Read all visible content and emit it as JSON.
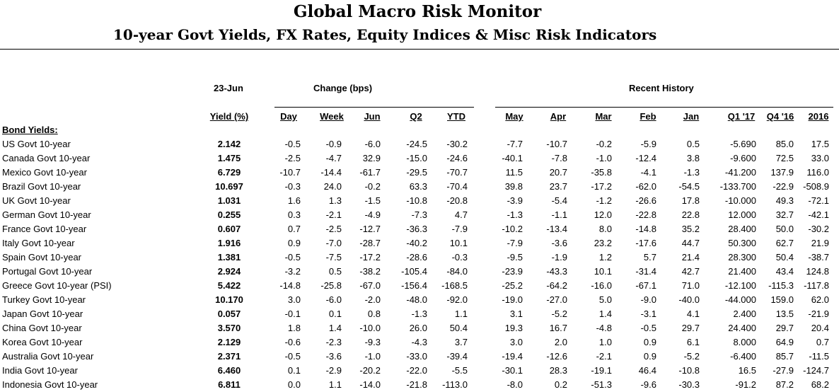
{
  "header": {
    "title": "Global Macro Risk Monitor",
    "subtitle": "10-year Govt Yields, FX Rates, Equity Indices & Misc Risk Indicators"
  },
  "groups": {
    "date": "23-Jun",
    "change": "Change (bps)",
    "history": "Recent History"
  },
  "columns": [
    "Yield (%)",
    "Day",
    "Week",
    "Jun",
    "Q2",
    "YTD",
    "May",
    "Apr",
    "Mar",
    "Feb",
    "Jan",
    "Q1 '17",
    "Q4 '16",
    "2016"
  ],
  "section_label": "Bond Yields:",
  "rows": [
    {
      "name": "US Govt 10-year",
      "values": [
        "2.142",
        "-0.5",
        "-0.9",
        "-6.0",
        "-24.5",
        "-30.2",
        "-7.7",
        "-10.7",
        "-0.2",
        "-5.9",
        "0.5",
        "-5.690",
        "85.0",
        "17.5"
      ]
    },
    {
      "name": "Canada Govt 10-year",
      "values": [
        "1.475",
        "-2.5",
        "-4.7",
        "32.9",
        "-15.0",
        "-24.6",
        "-40.1",
        "-7.8",
        "-1.0",
        "-12.4",
        "3.8",
        "-9.600",
        "72.5",
        "33.0"
      ]
    },
    {
      "name": "Mexico Govt 10-year",
      "values": [
        "6.729",
        "-10.7",
        "-14.4",
        "-61.7",
        "-29.5",
        "-70.7",
        "11.5",
        "20.7",
        "-35.8",
        "-4.1",
        "-1.3",
        "-41.200",
        "137.9",
        "116.0"
      ]
    },
    {
      "name": "Brazil Govt 10-year",
      "values": [
        "10.697",
        "-0.3",
        "24.0",
        "-0.2",
        "63.3",
        "-70.4",
        "39.8",
        "23.7",
        "-17.2",
        "-62.0",
        "-54.5",
        "-133.700",
        "-22.9",
        "-508.9"
      ]
    },
    {
      "name": "UK Govt 10-year",
      "values": [
        "1.031",
        "1.6",
        "1.3",
        "-1.5",
        "-10.8",
        "-20.8",
        "-3.9",
        "-5.4",
        "-1.2",
        "-26.6",
        "17.8",
        "-10.000",
        "49.3",
        "-72.1"
      ]
    },
    {
      "name": "German Govt 10-year",
      "values": [
        "0.255",
        "0.3",
        "-2.1",
        "-4.9",
        "-7.3",
        "4.7",
        "-1.3",
        "-1.1",
        "12.0",
        "-22.8",
        "22.8",
        "12.000",
        "32.7",
        "-42.1"
      ]
    },
    {
      "name": "France Govt 10-year",
      "values": [
        "0.607",
        "0.7",
        "-2.5",
        "-12.7",
        "-36.3",
        "-7.9",
        "-10.2",
        "-13.4",
        "8.0",
        "-14.8",
        "35.2",
        "28.400",
        "50.0",
        "-30.2"
      ]
    },
    {
      "name": "Italy Govt 10-year",
      "values": [
        "1.916",
        "0.9",
        "-7.0",
        "-28.7",
        "-40.2",
        "10.1",
        "-7.9",
        "-3.6",
        "23.2",
        "-17.6",
        "44.7",
        "50.300",
        "62.7",
        "21.9"
      ]
    },
    {
      "name": "Spain Govt 10-year",
      "values": [
        "1.381",
        "-0.5",
        "-7.5",
        "-17.2",
        "-28.6",
        "-0.3",
        "-9.5",
        "-1.9",
        "1.2",
        "5.7",
        "21.4",
        "28.300",
        "50.4",
        "-38.7"
      ]
    },
    {
      "name": "Portugal Govt 10-year",
      "values": [
        "2.924",
        "-3.2",
        "0.5",
        "-38.2",
        "-105.4",
        "-84.0",
        "-23.9",
        "-43.3",
        "10.1",
        "-31.4",
        "42.7",
        "21.400",
        "43.4",
        "124.8"
      ]
    },
    {
      "name": "Greece Govt 10-year (PSI)",
      "values": [
        "5.422",
        "-14.8",
        "-25.8",
        "-67.0",
        "-156.4",
        "-168.5",
        "-25.2",
        "-64.2",
        "-16.0",
        "-67.1",
        "71.0",
        "-12.100",
        "-115.3",
        "-117.8"
      ]
    },
    {
      "name": "Turkey Govt 10-year",
      "values": [
        "10.170",
        "3.0",
        "-6.0",
        "-2.0",
        "-48.0",
        "-92.0",
        "-19.0",
        "-27.0",
        "5.0",
        "-9.0",
        "-40.0",
        "-44.000",
        "159.0",
        "62.0"
      ]
    },
    {
      "name": "Japan Govt 10-year",
      "values": [
        "0.057",
        "-0.1",
        "0.1",
        "0.8",
        "-1.3",
        "1.1",
        "3.1",
        "-5.2",
        "1.4",
        "-3.1",
        "4.1",
        "2.400",
        "13.5",
        "-21.9"
      ]
    },
    {
      "name": "China Govt 10-year",
      "values": [
        "3.570",
        "1.8",
        "1.4",
        "-10.0",
        "26.0",
        "50.4",
        "19.3",
        "16.7",
        "-4.8",
        "-0.5",
        "29.7",
        "24.400",
        "29.7",
        "20.4"
      ]
    },
    {
      "name": "Korea Govt 10-year",
      "values": [
        "2.129",
        "-0.6",
        "-2.3",
        "-9.3",
        "-4.3",
        "3.7",
        "3.0",
        "2.0",
        "1.0",
        "0.9",
        "6.1",
        "8.000",
        "64.9",
        "0.7"
      ]
    },
    {
      "name": "Australia Govt 10-year",
      "values": [
        "2.371",
        "-0.5",
        "-3.6",
        "-1.0",
        "-33.0",
        "-39.4",
        "-19.4",
        "-12.6",
        "-2.1",
        "0.9",
        "-5.2",
        "-6.400",
        "85.7",
        "-11.5"
      ]
    },
    {
      "name": "India Govt 10-year",
      "values": [
        "6.460",
        "0.1",
        "-2.9",
        "-20.2",
        "-22.0",
        "-5.5",
        "-30.1",
        "28.3",
        "-19.1",
        "46.4",
        "-10.8",
        "16.5",
        "-27.9",
        "-124.7"
      ]
    },
    {
      "name": "Indonesia Govt 10-year",
      "values": [
        "6.811",
        "0.0",
        "1.1",
        "-14.0",
        "-21.8",
        "-113.0",
        "-8.0",
        "0.2",
        "-51.3",
        "-9.6",
        "-30.3",
        "-91.2",
        "87.2",
        "68.2"
      ]
    }
  ]
}
